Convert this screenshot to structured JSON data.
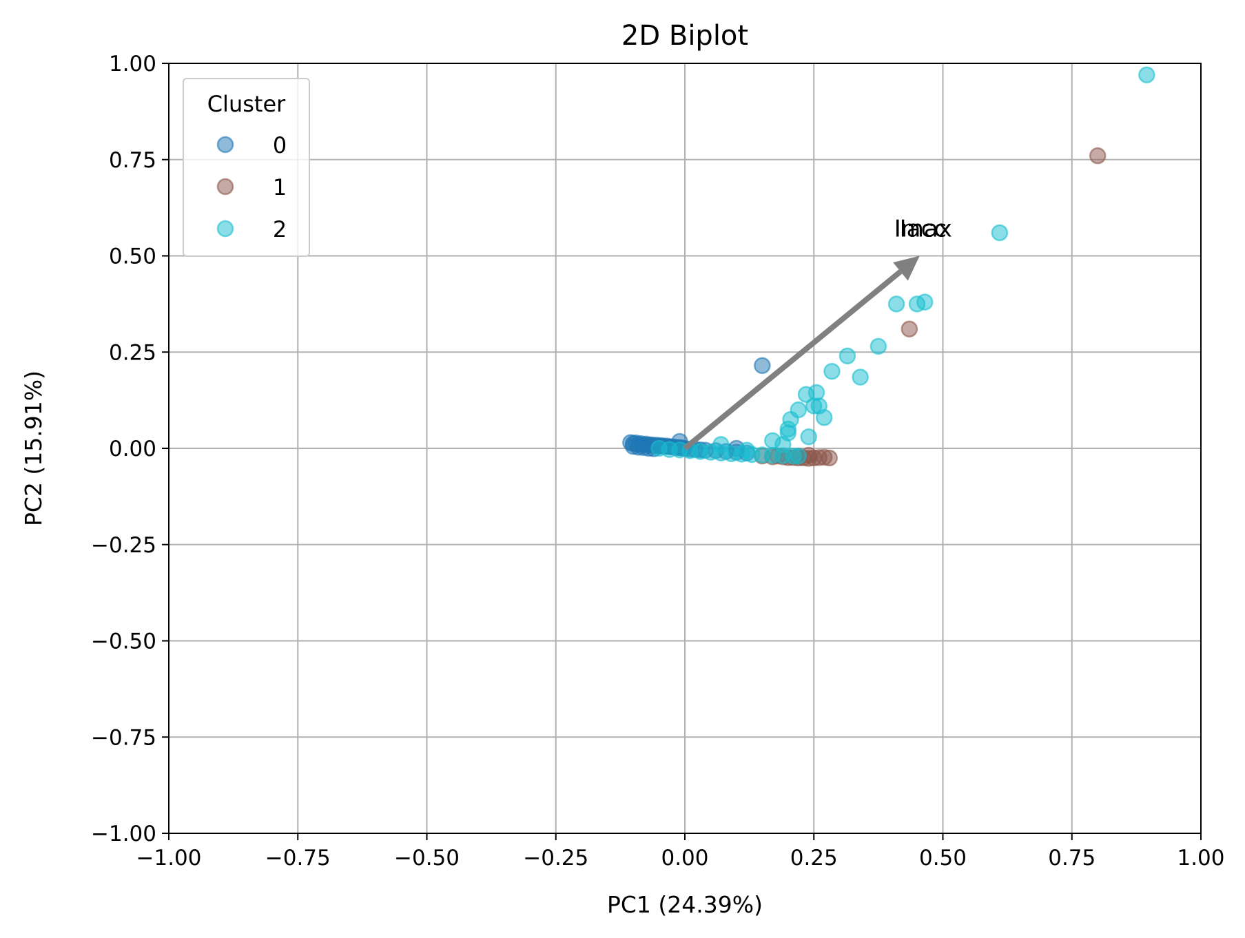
{
  "chart_data": {
    "type": "scatter",
    "title": "2D Biplot",
    "xlabel": "PC1 (24.39%)",
    "ylabel": "PC2 (15.91%)",
    "xlim": [
      -1.0,
      1.0
    ],
    "ylim": [
      -1.0,
      1.0
    ],
    "xticks": [
      -1.0,
      -0.75,
      -0.5,
      -0.25,
      0.0,
      0.25,
      0.5,
      0.75,
      1.0
    ],
    "yticks": [
      -1.0,
      -0.75,
      -0.5,
      -0.25,
      0.0,
      0.25,
      0.5,
      0.75,
      1.0
    ],
    "xtick_labels": [
      "−1.00",
      "−0.75",
      "−0.50",
      "−0.25",
      "0.00",
      "0.25",
      "0.50",
      "0.75",
      "1.00"
    ],
    "ytick_labels": [
      "−1.00",
      "−0.75",
      "−0.50",
      "−0.25",
      "0.00",
      "0.25",
      "0.50",
      "0.75",
      "1.00"
    ],
    "grid": true,
    "legend": {
      "title": "Cluster",
      "position": "upper-left",
      "entries": [
        "0",
        "1",
        "2"
      ]
    },
    "colors": {
      "0": "#1f77b4",
      "1": "#8c564b",
      "2": "#17becf",
      "arrow": "#808080",
      "grid": "#b0b0b0"
    },
    "series": [
      {
        "name": "0",
        "points": [
          [
            -0.105,
            0.015
          ],
          [
            -0.1,
            0.012
          ],
          [
            -0.095,
            0.014
          ],
          [
            -0.09,
            0.01
          ],
          [
            -0.085,
            0.012
          ],
          [
            -0.08,
            0.009
          ],
          [
            -0.075,
            0.011
          ],
          [
            -0.07,
            0.008
          ],
          [
            -0.065,
            0.009
          ],
          [
            -0.06,
            0.007
          ],
          [
            -0.055,
            0.008
          ],
          [
            -0.05,
            0.006
          ],
          [
            -0.045,
            0.007
          ],
          [
            -0.04,
            0.005
          ],
          [
            -0.035,
            0.006
          ],
          [
            -0.03,
            0.004
          ],
          [
            -0.025,
            0.004
          ],
          [
            -0.02,
            0.003
          ],
          [
            -0.015,
            0.002
          ],
          [
            -0.01,
            0.002
          ],
          [
            -0.005,
            0.001
          ],
          [
            0.0,
            0.0
          ],
          [
            0.01,
            -0.002
          ],
          [
            0.02,
            -0.003
          ],
          [
            0.03,
            -0.004
          ],
          [
            0.04,
            -0.005
          ],
          [
            0.06,
            -0.006
          ],
          [
            0.08,
            -0.008
          ],
          [
            0.1,
            -0.01
          ],
          [
            0.12,
            -0.012
          ],
          [
            -0.1,
            0.005
          ],
          [
            -0.09,
            0.003
          ],
          [
            -0.08,
            0.002
          ],
          [
            -0.07,
            0.0
          ],
          [
            -0.06,
            -0.001
          ],
          [
            -0.01,
            0.018
          ],
          [
            0.1,
            0.0
          ],
          [
            0.15,
            0.215
          ]
        ]
      },
      {
        "name": "1",
        "points": [
          [
            0.15,
            -0.02
          ],
          [
            0.17,
            -0.022
          ],
          [
            0.19,
            -0.022
          ],
          [
            0.2,
            -0.024
          ],
          [
            0.21,
            -0.024
          ],
          [
            0.22,
            -0.025
          ],
          [
            0.23,
            -0.025
          ],
          [
            0.24,
            -0.026
          ],
          [
            0.25,
            -0.025
          ],
          [
            0.26,
            -0.024
          ],
          [
            0.27,
            -0.023
          ],
          [
            0.28,
            -0.025
          ],
          [
            0.24,
            -0.018
          ],
          [
            0.22,
            -0.02
          ],
          [
            0.18,
            -0.02
          ],
          [
            0.435,
            0.31
          ],
          [
            0.8,
            0.76
          ]
        ]
      },
      {
        "name": "2",
        "points": [
          [
            -0.05,
            0.0
          ],
          [
            -0.03,
            -0.003
          ],
          [
            -0.01,
            -0.004
          ],
          [
            0.01,
            -0.006
          ],
          [
            0.03,
            -0.008
          ],
          [
            0.05,
            -0.01
          ],
          [
            0.07,
            -0.012
          ],
          [
            0.09,
            -0.014
          ],
          [
            0.11,
            -0.015
          ],
          [
            0.13,
            -0.016
          ],
          [
            0.15,
            -0.017
          ],
          [
            0.17,
            -0.018
          ],
          [
            0.19,
            -0.019
          ],
          [
            0.21,
            -0.02
          ],
          [
            0.22,
            -0.02
          ],
          [
            0.07,
            0.01
          ],
          [
            0.12,
            -0.005
          ],
          [
            0.17,
            0.02
          ],
          [
            0.19,
            0.01
          ],
          [
            0.2,
            0.04
          ],
          [
            0.2,
            0.05
          ],
          [
            0.205,
            0.075
          ],
          [
            0.22,
            0.1
          ],
          [
            0.235,
            0.14
          ],
          [
            0.24,
            0.03
          ],
          [
            0.25,
            0.11
          ],
          [
            0.255,
            0.145
          ],
          [
            0.26,
            0.11
          ],
          [
            0.27,
            0.08
          ],
          [
            0.285,
            0.2
          ],
          [
            0.315,
            0.24
          ],
          [
            0.34,
            0.185
          ],
          [
            0.375,
            0.265
          ],
          [
            0.41,
            0.375
          ],
          [
            0.45,
            0.375
          ],
          [
            0.465,
            0.38
          ],
          [
            0.61,
            0.56
          ],
          [
            0.895,
            0.97
          ]
        ]
      }
    ],
    "loading_vectors": [
      {
        "labels": [
          "Iacc",
          "Imax"
        ],
        "x": 0.455,
        "y": 0.5
      }
    ]
  }
}
